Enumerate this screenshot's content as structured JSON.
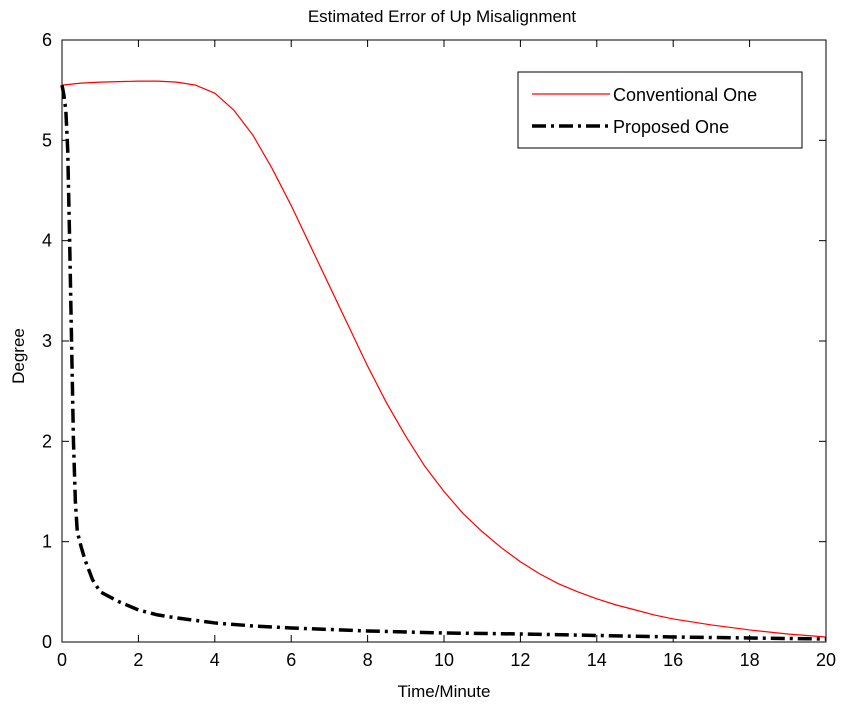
{
  "chart_data": {
    "type": "line",
    "title": "Estimated Error of Up Misalignment",
    "xlabel": "Time/Minute",
    "ylabel": "Degree",
    "xlim": [
      0,
      20
    ],
    "ylim": [
      0,
      6
    ],
    "xticks": [
      "0",
      "2",
      "4",
      "6",
      "8",
      "10",
      "12",
      "14",
      "16",
      "18",
      "20"
    ],
    "yticks": [
      "0",
      "1",
      "2",
      "3",
      "4",
      "5",
      "6"
    ],
    "grid": false,
    "legend_position": "top-right",
    "series": [
      {
        "name": "Conventional One",
        "color": "#ff0000",
        "style": "solid",
        "x": [
          0,
          0.5,
          1,
          1.5,
          2,
          2.5,
          3,
          3.5,
          4,
          4.5,
          5,
          5.5,
          6,
          6.5,
          7,
          7.5,
          8,
          8.5,
          9,
          9.5,
          10,
          10.5,
          11,
          11.5,
          12,
          12.5,
          13,
          13.5,
          14,
          14.5,
          15,
          15.5,
          16,
          16.5,
          17,
          17.5,
          18,
          18.5,
          19,
          19.5,
          20
        ],
        "y": [
          5.55,
          5.57,
          5.58,
          5.585,
          5.59,
          5.59,
          5.58,
          5.55,
          5.47,
          5.3,
          5.05,
          4.72,
          4.35,
          3.95,
          3.55,
          3.15,
          2.75,
          2.38,
          2.05,
          1.75,
          1.5,
          1.28,
          1.1,
          0.94,
          0.8,
          0.68,
          0.58,
          0.5,
          0.43,
          0.37,
          0.32,
          0.27,
          0.23,
          0.2,
          0.17,
          0.145,
          0.12,
          0.1,
          0.08,
          0.065,
          0.05
        ]
      },
      {
        "name": "Proposed One",
        "color": "#000000",
        "style": "dashdot",
        "x": [
          0,
          0.05,
          0.1,
          0.15,
          0.2,
          0.25,
          0.3,
          0.35,
          0.4,
          0.5,
          0.6,
          0.8,
          1,
          1.5,
          2,
          2.5,
          3,
          4,
          5,
          6,
          8,
          10,
          12,
          14,
          16,
          18,
          20
        ],
        "y": [
          5.55,
          5.45,
          5.3,
          4.9,
          4.0,
          3.0,
          2.0,
          1.4,
          1.1,
          0.95,
          0.82,
          0.62,
          0.5,
          0.4,
          0.32,
          0.27,
          0.24,
          0.19,
          0.16,
          0.14,
          0.11,
          0.09,
          0.08,
          0.065,
          0.05,
          0.04,
          0.03
        ]
      }
    ]
  }
}
